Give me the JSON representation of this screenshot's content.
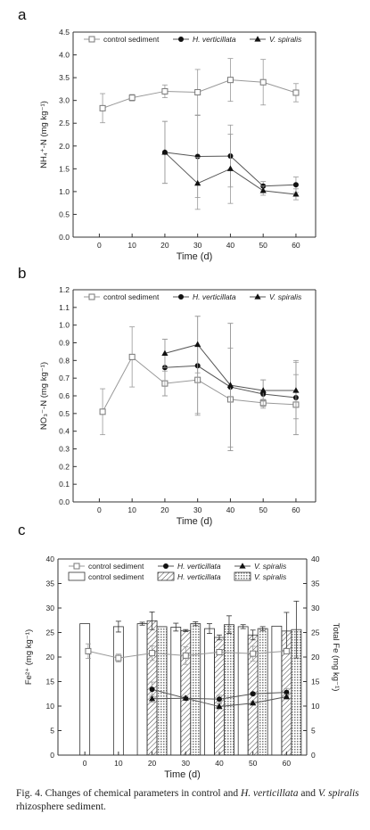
{
  "caption": {
    "prefix": "Fig. 4. Changes of chemical parameters in control and ",
    "species1": "H. verticillata",
    "middle": " and ",
    "species2": "V. spiralis",
    "suffix": " rhizosphere sediment."
  },
  "chart_data": [
    {
      "type": "line",
      "panel": "a",
      "xlabel": "Time (d)",
      "ylabel": "NH₄⁺-N (mg kg⁻¹)",
      "xlim": [
        -8,
        66
      ],
      "ylim": [
        0.0,
        4.5
      ],
      "xticks": [
        0,
        10,
        20,
        30,
        40,
        50,
        60
      ],
      "yticks": [
        0.0,
        0.5,
        1.0,
        1.5,
        2.0,
        2.5,
        3.0,
        3.5,
        4.0,
        4.5
      ],
      "ytick_labels": [
        "0.0",
        "0.5",
        "1.0",
        "1.5",
        "2.0",
        "2.5",
        "3.0",
        "3.5",
        "4.0",
        "4.5"
      ],
      "legend_position": "top",
      "series": [
        {
          "name": "control sediment",
          "marker": "open-square",
          "x": [
            1,
            10,
            20,
            30,
            40,
            50,
            60
          ],
          "y": [
            2.83,
            3.06,
            3.2,
            3.18,
            3.45,
            3.4,
            3.17
          ],
          "err": [
            0.32,
            0.07,
            0.14,
            0.5,
            0.47,
            0.5,
            0.2
          ]
        },
        {
          "name": "H. verticillata",
          "marker": "filled-circle",
          "x": [
            20,
            30,
            40,
            50,
            60
          ],
          "y": [
            1.86,
            1.77,
            1.78,
            1.12,
            1.15
          ],
          "err": [
            0.68,
            0.9,
            0.68,
            0.1,
            0.17
          ]
        },
        {
          "name": "V. spiralis",
          "marker": "filled-triangle",
          "x": [
            20,
            30,
            40,
            50,
            60
          ],
          "y": [
            1.86,
            1.18,
            1.5,
            1.02,
            0.94
          ],
          "err": [
            0.68,
            0.57,
            0.76,
            0.1,
            0.12
          ]
        }
      ]
    },
    {
      "type": "line",
      "panel": "b",
      "xlabel": "Time (d)",
      "ylabel": "NO₃⁻-N (mg kg⁻¹)",
      "xlim": [
        -8,
        66
      ],
      "ylim": [
        0.0,
        1.2
      ],
      "xticks": [
        0,
        10,
        20,
        30,
        40,
        50,
        60
      ],
      "yticks": [
        0.0,
        0.1,
        0.2,
        0.3,
        0.4,
        0.5,
        0.6,
        0.7,
        0.8,
        0.9,
        1.0,
        1.1,
        1.2
      ],
      "ytick_labels": [
        "0.0",
        "0.1",
        "0.2",
        "0.3",
        "0.4",
        "0.5",
        "0.6",
        "0.7",
        "0.8",
        "0.9",
        "1.0",
        "1.1",
        "1.2"
      ],
      "legend_position": "top",
      "series": [
        {
          "name": "control sediment",
          "marker": "open-square",
          "x": [
            1,
            10,
            20,
            30,
            40,
            50,
            60
          ],
          "y": [
            0.51,
            0.82,
            0.67,
            0.69,
            0.58,
            0.56,
            0.55
          ],
          "err": [
            0.13,
            0.17,
            0.07,
            0.19,
            0.29,
            0.02,
            0.17
          ]
        },
        {
          "name": "H. verticillata",
          "marker": "filled-circle",
          "x": [
            20,
            30,
            40,
            50,
            60
          ],
          "y": [
            0.76,
            0.77,
            0.65,
            0.61,
            0.59
          ],
          "err": [
            0.16,
            0.28,
            0.36,
            0.08,
            0.21
          ]
        },
        {
          "name": "V. spiralis",
          "marker": "filled-triangle",
          "x": [
            20,
            30,
            40,
            50,
            60
          ],
          "y": [
            0.84,
            0.89,
            0.66,
            0.63,
            0.63
          ],
          "err": [
            0.08,
            0.16,
            0.35,
            0.06,
            0.16
          ]
        }
      ]
    },
    {
      "type": "bar+line",
      "panel": "c",
      "xlabel": "Time (d)",
      "ylabel": "Fe²⁺ (mg kg⁻¹)",
      "ylabel_right": "Total Fe (mg kg⁻¹)",
      "xlim": [
        -8,
        66
      ],
      "ylim": [
        0,
        40
      ],
      "ylim_right": [
        0,
        40
      ],
      "xticks": [
        0,
        10,
        20,
        30,
        40,
        50,
        60
      ],
      "yticks": [
        0,
        5,
        10,
        15,
        20,
        25,
        30,
        35,
        40
      ],
      "ytick_labels": [
        "0",
        "5",
        "10",
        "15",
        "20",
        "25",
        "30",
        "35",
        "40"
      ],
      "legend_position": "top",
      "series": [
        {
          "name": "control sediment",
          "marker": "open-square",
          "x": [
            1,
            10,
            20,
            30,
            40,
            50,
            60
          ],
          "y": [
            21.2,
            19.8,
            20.8,
            20.3,
            21.0,
            20.7,
            21.2
          ],
          "err": [
            1.5,
            0.8,
            1.5,
            1.8,
            0.4,
            1.5,
            0.5
          ]
        },
        {
          "name": "H. verticillata",
          "marker": "filled-circle",
          "x": [
            20,
            30,
            40,
            50,
            60
          ],
          "y": [
            13.4,
            11.6,
            11.4,
            12.5,
            12.8
          ],
          "err": [
            1.5,
            0.3,
            0.8,
            0.3,
            0.8
          ]
        },
        {
          "name": "V. spiralis",
          "marker": "filled-triangle",
          "x": [
            20,
            30,
            40,
            50,
            60
          ],
          "y": [
            11.5,
            11.6,
            9.9,
            10.6,
            11.9
          ],
          "err": [
            0.7,
            0.3,
            0.5,
            0.4,
            0.5
          ]
        }
      ],
      "bars": [
        {
          "name": "control sediment",
          "pattern": "open",
          "x": [
            0,
            10,
            20,
            30,
            40,
            50,
            60
          ],
          "y": [
            26.8,
            26.2,
            26.8,
            26.1,
            25.8,
            26.2,
            26.3
          ],
          "err": [
            0,
            1.1,
            0.3,
            0.8,
            1.0,
            0.4,
            0.0
          ]
        },
        {
          "name": "H. verticillata",
          "pattern": "hatch",
          "x": [
            20,
            30,
            40,
            50,
            60
          ],
          "y": [
            27.4,
            25.4,
            24.0,
            24.5,
            25.3
          ],
          "err": [
            1.8,
            0.2,
            0.5,
            1.0,
            3.8
          ]
        },
        {
          "name": "V. spiralis",
          "pattern": "dots",
          "x": [
            20,
            30,
            40,
            50,
            60
          ],
          "y": [
            26.2,
            26.8,
            26.6,
            25.8,
            25.6
          ],
          "err": [
            0,
            0.4,
            1.8,
            0.4,
            5.8
          ]
        }
      ]
    }
  ]
}
